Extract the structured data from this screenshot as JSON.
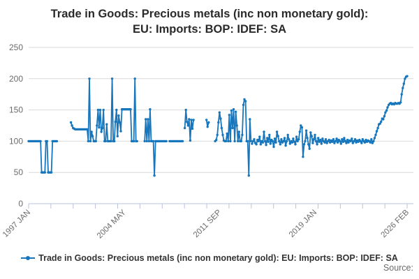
{
  "title": {
    "line1": "Trade in Goods: Precious metals (inc non monetary gold):",
    "line2": "EU: Imports: BOP: IDEF: SA"
  },
  "legend": {
    "label": "Trade in Goods: Precious metals (inc non monetary gold): EU: Imports: BOP: IDEF: SA"
  },
  "source": {
    "label": "Source:"
  },
  "colors": {
    "line": "#1776bc",
    "grid": "#d9d9d9",
    "axis": "#b7c3dc",
    "tick_label": "#6b6b6b"
  },
  "chart_data": {
    "type": "line",
    "title": "Trade in Goods: Precious metals (inc non monetary gold): EU: Imports: BOP: IDEF: SA",
    "xlabel": "",
    "ylabel": "",
    "ylim": [
      0,
      250
    ],
    "y_ticks": [
      0,
      50,
      100,
      150,
      200,
      250
    ],
    "grid": "horizontal",
    "legend_position": "bottom",
    "n_months": 350,
    "n_x_ticks": 18,
    "x_tick_labels": [
      {
        "month": 0,
        "label": "1997 JAN"
      },
      {
        "month": 88,
        "label": "2004 MAY"
      },
      {
        "month": 176,
        "label": "2011 SEP"
      },
      {
        "month": 264,
        "label": "2019 JAN"
      },
      {
        "month": 349,
        "label": "2026 FEB"
      }
    ],
    "series_name": "Trade in Goods: Precious metals (inc non monetary gold): EU: Imports: BOP: IDEF: SA",
    "segments": [
      {
        "start": 0,
        "values": [
          100,
          100,
          100,
          100,
          100,
          100,
          100,
          100,
          100,
          100,
          100,
          100,
          50,
          50,
          50,
          50,
          100,
          100,
          50,
          50,
          50,
          50,
          100,
          100,
          100,
          100,
          100
        ]
      },
      {
        "start": 39,
        "values": [
          130,
          125,
          121,
          120,
          119,
          119,
          119,
          119,
          119,
          119,
          119,
          119,
          119,
          119,
          119,
          119,
          100,
          200,
          100,
          115,
          108,
          100,
          100,
          100,
          125,
          150,
          122,
          150,
          115,
          121,
          150,
          100,
          100,
          127,
          100,
          100,
          100,
          100,
          200,
          100,
          100,
          131,
          150,
          108,
          141,
          130,
          116,
          151,
          151,
          151,
          151,
          151,
          151,
          151,
          151,
          151,
          100,
          100,
          100,
          200,
          100,
          100
        ]
      },
      {
        "start": 107,
        "values": [
          100,
          135,
          100,
          135,
          100,
          151,
          100,
          100,
          100,
          45,
          100,
          100,
          100,
          100,
          100,
          100,
          100,
          100,
          100,
          100,
          100
        ]
      },
      {
        "start": 130,
        "values": [
          100,
          100,
          100,
          100,
          100,
          100,
          100,
          100,
          100,
          100,
          100,
          100,
          100
        ]
      },
      {
        "start": 144,
        "values": [
          121,
          150,
          131,
          125,
          135,
          101,
          134,
          120,
          134
        ]
      },
      {
        "start": 164,
        "values": [
          134,
          123,
          130
        ]
      },
      {
        "start": 172,
        "values": [
          100,
          102,
          110,
          130,
          146,
          136,
          121,
          110,
          101,
          100,
          100,
          112,
          100,
          142,
          100,
          149,
          121,
          151,
          100,
          147,
          125,
          100,
          115,
          100,
          100,
          110,
          158,
          167,
          164,
          100,
          100,
          45,
          135,
          100
        ]
      },
      {
        "start": 206,
        "values": [
          96,
          100,
          103,
          97,
          95,
          102,
          100,
          107,
          95,
          100,
          98,
          115,
          100,
          94,
          105,
          99,
          110,
          96,
          102,
          100,
          91,
          104,
          98,
          115,
          108,
          100,
          95,
          103,
          98,
          100,
          105,
          93,
          100,
          110,
          103,
          96,
          100,
          98,
          104,
          99,
          95,
          107,
          100,
          103,
          115,
          125,
          122,
          75,
          95,
          100,
          117,
          105,
          95,
          88,
          114,
          108,
          97,
          103,
          110,
          100,
          95,
          105,
          99,
          102,
          96,
          104,
          100,
          98,
          103,
          97,
          100,
          102,
          98,
          101,
          99,
          103,
          97,
          100,
          104,
          98,
          102,
          100,
          96,
          103,
          99,
          105,
          100,
          97,
          102,
          98,
          101,
          100,
          104,
          97,
          100,
          103,
          98,
          101,
          99,
          102,
          100,
          97,
          103,
          100,
          98,
          102,
          99,
          101,
          100,
          98,
          103,
          97,
          100,
          105,
          110,
          116,
          121,
          127,
          128,
          131,
          136,
          135,
          140,
          146,
          149,
          154,
          158,
          160,
          161,
          159,
          160,
          159,
          161,
          160,
          160,
          161,
          160,
          162,
          175,
          185,
          192,
          200,
          203,
          204
        ]
      }
    ]
  }
}
